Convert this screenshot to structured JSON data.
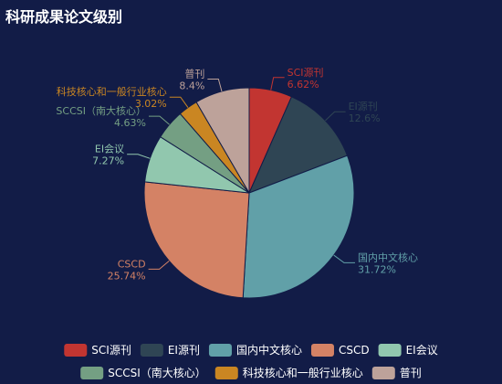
{
  "title": "科研成果论文级别",
  "chart_data": {
    "type": "pie",
    "title": "科研成果论文级别",
    "unit": "%",
    "slices": [
      {
        "name": "SCI源刊",
        "value": 6.62,
        "label": "6.62%",
        "color": "#c23531"
      },
      {
        "name": "EI源刊",
        "value": 12.6,
        "label": "12.6%",
        "color": "#2f4554"
      },
      {
        "name": "国内中文核心",
        "value": 31.72,
        "label": "31.72%",
        "color": "#61a0a8"
      },
      {
        "name": "CSCD",
        "value": 25.74,
        "label": "25.74%",
        "color": "#d48265"
      },
      {
        "name": "EI会议",
        "value": 7.27,
        "label": "7.27%",
        "color": "#91c7ae"
      },
      {
        "name": "SCCSI（南大核心）",
        "value": 4.63,
        "label": "4.63%",
        "color": "#749f83"
      },
      {
        "name": "科技核心和一般行业核心",
        "value": 3.02,
        "label": "3.02%",
        "color": "#ca8622"
      },
      {
        "name": "普刊",
        "value": 8.4,
        "label": "8.4%",
        "color": "#bda29a"
      }
    ],
    "legend_position": "bottom"
  }
}
